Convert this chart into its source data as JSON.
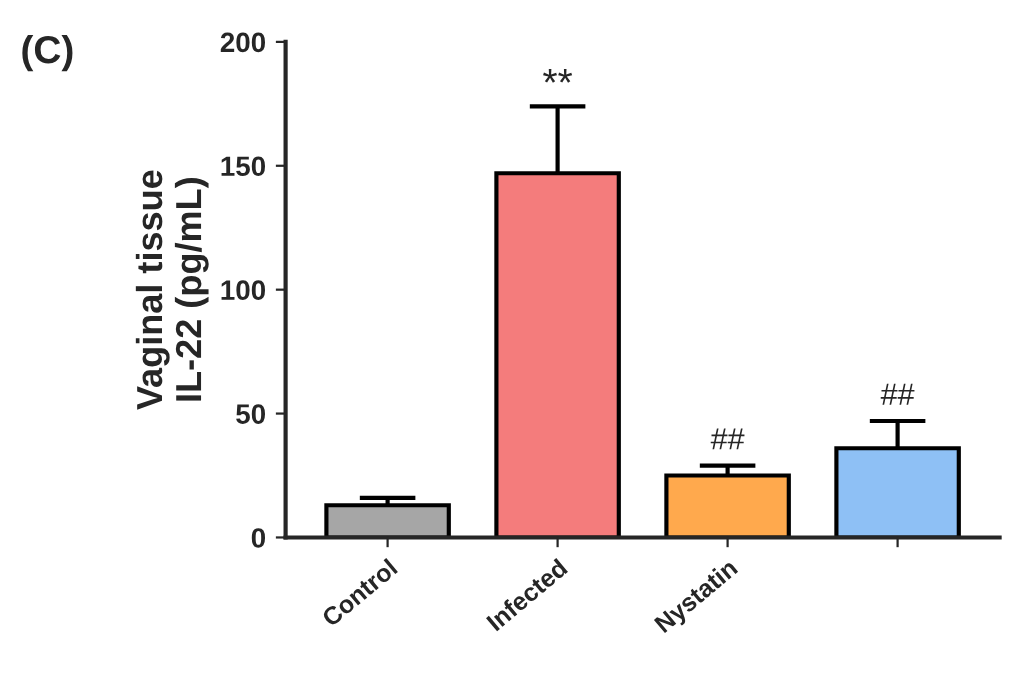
{
  "chart_data": {
    "type": "bar",
    "title": "(C)",
    "ylabel": "Vaginal tissue\nIL-22 (pg/mL)",
    "categories": [
      "Control",
      "Infected",
      "Nystatin",
      null
    ],
    "values": [
      13,
      147,
      25,
      36
    ],
    "colors": [
      "#a6a6a6",
      "#f47c7c",
      "#ffa94d",
      "#8ec0f5"
    ],
    "errors": [
      3,
      27,
      4,
      11
    ],
    "ylim": [
      0,
      200
    ],
    "yticks": [
      0,
      50,
      100,
      150,
      200
    ],
    "annotations": [
      "**",
      "##",
      "##"
    ],
    "grid": false,
    "legend": false
  }
}
